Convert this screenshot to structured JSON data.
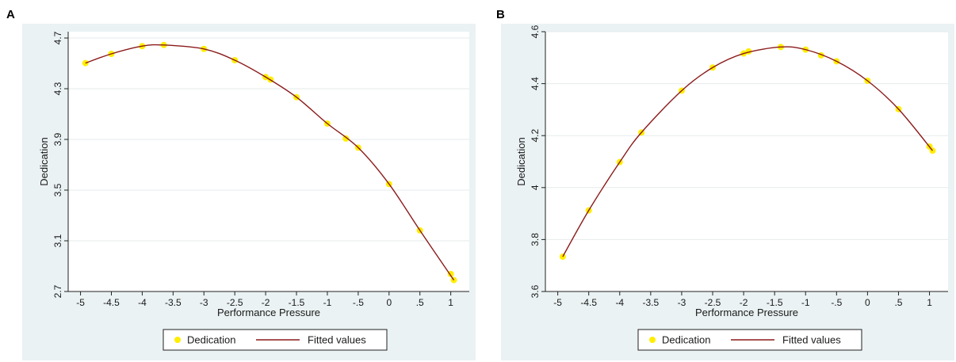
{
  "panels": [
    {
      "letter": "A",
      "chart_data": {
        "type": "line",
        "title": "",
        "xlabel": "Performance Pressure",
        "ylabel": "Dedication",
        "xlim": [
          -5.2,
          1.3
        ],
        "ylim": [
          2.7,
          4.75
        ],
        "xticks": [
          -5,
          -4.5,
          -4,
          -3.5,
          -3,
          -2.5,
          -2,
          -1.5,
          -1,
          -0.5,
          0,
          0.5,
          1
        ],
        "xtick_labels": [
          "-5",
          "-4.5",
          "-4",
          "-3.5",
          "-3",
          "-2.5",
          "-2",
          "-1.5",
          "-1",
          "-.5",
          "0",
          ".5",
          "1"
        ],
        "yticks": [
          2.7,
          3.1,
          3.5,
          3.9,
          4.3,
          4.7
        ],
        "ytick_labels": [
          "2.7",
          "3.1",
          "3.5",
          "3.9",
          "4.3",
          "4.7"
        ],
        "grid": true,
        "legend_position": "bottom",
        "series": [
          {
            "name": "Dedication",
            "kind": "scatter",
            "color": "#ffee00",
            "x": [
              -4.92,
              -4.5,
              -4.0,
              -3.65,
              -3.0,
              -2.5,
              -2.0,
              -1.92,
              -1.5,
              -1.0,
              -0.7,
              -0.5,
              0.0,
              0.5,
              1.0,
              1.05
            ],
            "y": [
              4.502,
              4.575,
              4.636,
              4.645,
              4.614,
              4.525,
              4.392,
              4.372,
              4.233,
              4.025,
              3.907,
              3.835,
              3.548,
              3.182,
              2.838,
              2.79
            ]
          },
          {
            "name": "Fitted values",
            "kind": "line",
            "color": "#8b1a1a",
            "x": [
              -4.92,
              -4.5,
              -4.0,
              -3.65,
              -3.0,
              -2.5,
              -2.0,
              -1.5,
              -1.0,
              -0.5,
              0.0,
              0.5,
              1.05
            ],
            "y": [
              4.502,
              4.575,
              4.636,
              4.645,
              4.614,
              4.525,
              4.392,
              4.233,
              4.025,
              3.835,
              3.548,
              3.182,
              2.79
            ]
          }
        ]
      }
    },
    {
      "letter": "B",
      "chart_data": {
        "type": "line",
        "title": "",
        "xlabel": "Performance Pressure",
        "ylabel": "Dedication",
        "xlim": [
          -5.2,
          1.3
        ],
        "ylim": [
          3.6,
          4.6
        ],
        "xticks": [
          -5,
          -4.5,
          -4,
          -3.5,
          -3,
          -2.5,
          -2,
          -1.5,
          -1,
          -0.5,
          0,
          0.5,
          1
        ],
        "xtick_labels": [
          "-5",
          "-4.5",
          "-4",
          "-3.5",
          "-3",
          "-2.5",
          "-2",
          "-1.5",
          "-1",
          "-.5",
          "0",
          ".5",
          "1"
        ],
        "yticks": [
          3.6,
          3.8,
          4.0,
          4.2,
          4.4,
          4.6
        ],
        "ytick_labels": [
          "3.6",
          "3.8",
          "4",
          "4.2",
          "4.4",
          "4.6"
        ],
        "grid": true,
        "legend_position": "bottom",
        "series": [
          {
            "name": "Dedication",
            "kind": "scatter",
            "color": "#ffee00",
            "x": [
              -4.92,
              -4.5,
              -4.0,
              -3.65,
              -3.0,
              -2.5,
              -2.0,
              -1.92,
              -1.4,
              -1.0,
              -0.75,
              -0.5,
              0.0,
              0.5,
              1.0,
              1.05
            ],
            "y": [
              3.734,
              3.912,
              4.098,
              4.212,
              4.373,
              4.462,
              4.516,
              4.524,
              4.541,
              4.531,
              4.509,
              4.486,
              4.411,
              4.302,
              4.158,
              4.142
            ]
          },
          {
            "name": "Fitted values",
            "kind": "line",
            "color": "#8b1a1a",
            "x": [
              -4.92,
              -4.5,
              -4.0,
              -3.65,
              -3.0,
              -2.5,
              -2.0,
              -1.4,
              -1.0,
              -0.5,
              0.0,
              0.5,
              1.05
            ],
            "y": [
              3.734,
              3.912,
              4.098,
              4.212,
              4.373,
              4.462,
              4.516,
              4.541,
              4.531,
              4.486,
              4.411,
              4.302,
              4.142
            ]
          }
        ]
      }
    }
  ]
}
